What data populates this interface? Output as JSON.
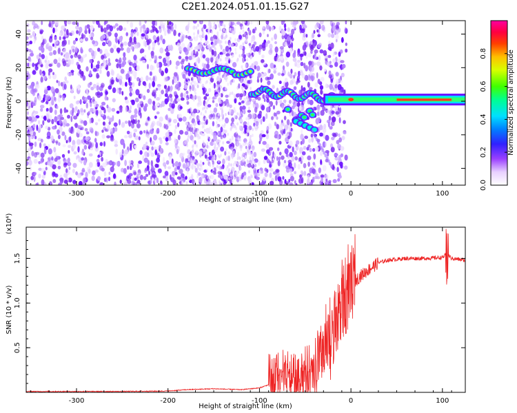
{
  "title": "C2E1.2024.051.01.15.G27",
  "chart_data": [
    {
      "type": "heatmap",
      "xlabel": "Height of straight line (km)",
      "ylabel": "Frequency (Hz)",
      "xlim": [
        -355,
        125
      ],
      "ylim": [
        -50,
        48
      ],
      "xticks": [
        -300,
        -200,
        -100,
        0,
        100
      ],
      "yticks": [
        -40,
        -20,
        0,
        20,
        40
      ],
      "colorbar": {
        "label": "Normalized spectral amplitude",
        "range": [
          0,
          1
        ],
        "ticks": [
          0.0,
          0.2,
          0.4,
          0.6,
          0.8
        ],
        "colormap": "rainbow (white-violet-blue-cyan-green-yellow-red-magenta)"
      },
      "colors": {
        "noise": "#8a3cf0",
        "low": "#6a00ff",
        "mid": "#00e0a0",
        "high": "#ff2020"
      }
    },
    {
      "type": "line",
      "xlabel": "Height of straight line (km)",
      "ylabel": "SNR (10 * v/v)",
      "multiplier": "(x10⁴)",
      "xlim": [
        -355,
        125
      ],
      "ylim": [
        0,
        1.85
      ],
      "xticks": [
        -300,
        -200,
        -100,
        0,
        100
      ],
      "yticks": [
        0.5,
        1.0,
        1.5
      ],
      "color": "#ee2222",
      "series": [
        {
          "x": [
            -355,
            -300,
            -250,
            -200,
            -180,
            -150,
            -120,
            -100,
            -80,
            -60,
            -40,
            -30,
            -20,
            -15,
            -10,
            -5,
            0,
            10,
            20,
            30,
            40,
            60,
            80,
            100,
            105,
            110,
            125
          ],
          "y": [
            0.01,
            0.01,
            0.01,
            0.015,
            0.03,
            0.04,
            0.03,
            0.05,
            0.12,
            0.15,
            0.2,
            0.35,
            0.6,
            0.8,
            0.95,
            1.05,
            1.2,
            1.3,
            1.38,
            1.45,
            1.48,
            1.5,
            1.5,
            1.51,
            1.55,
            1.5,
            1.48
          ]
        }
      ]
    }
  ]
}
